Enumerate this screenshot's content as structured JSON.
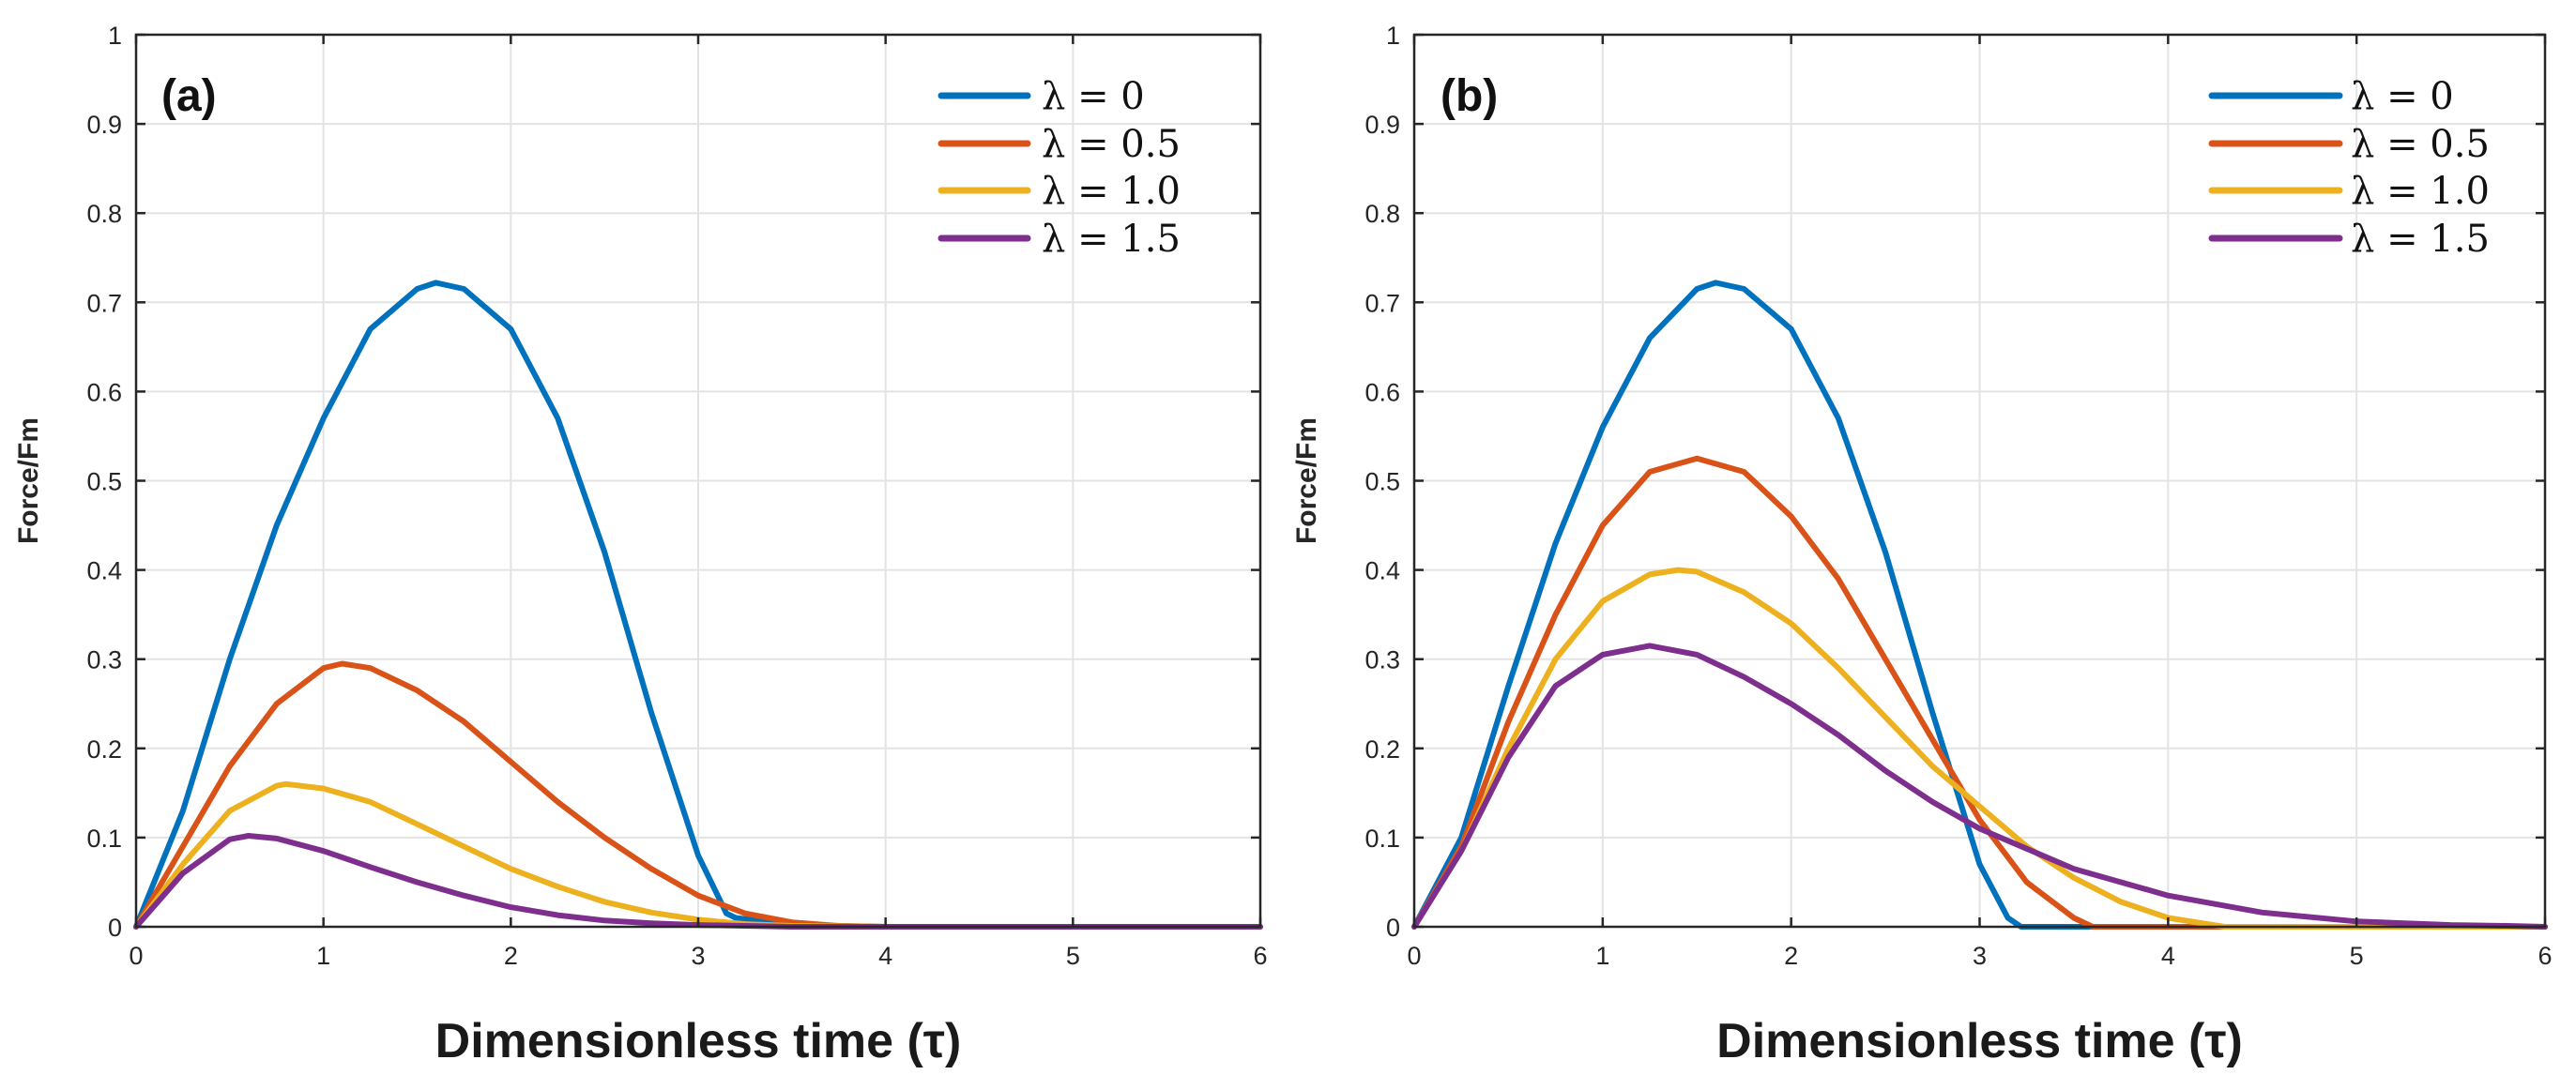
{
  "chart_data": [
    {
      "type": "line",
      "panel_label": "(a)",
      "xlabel": "Dimensionless time (τ)",
      "ylabel": "Force/Fm",
      "xlim": [
        0,
        6
      ],
      "ylim": [
        0,
        1
      ],
      "xticks": [
        "0",
        "1",
        "2",
        "3",
        "4",
        "5",
        "6"
      ],
      "yticks": [
        "0",
        "0.1",
        "0.2",
        "0.3",
        "0.4",
        "0.5",
        "0.6",
        "0.7",
        "0.8",
        "0.9",
        "1"
      ],
      "grid": true,
      "legend_position": "top-right",
      "series": [
        {
          "name": "λ = 0",
          "color": "#0072BD",
          "x": [
            0,
            0.25,
            0.5,
            0.75,
            1.0,
            1.25,
            1.5,
            1.6,
            1.75,
            2.0,
            2.25,
            2.5,
            2.75,
            3.0,
            3.15,
            3.2,
            3.5,
            4,
            5,
            6
          ],
          "y": [
            0,
            0.13,
            0.3,
            0.45,
            0.57,
            0.67,
            0.715,
            0.722,
            0.715,
            0.67,
            0.57,
            0.42,
            0.24,
            0.08,
            0.015,
            0.01,
            0.002,
            0,
            0,
            0
          ]
        },
        {
          "name": "λ = 0.5",
          "color": "#D95319",
          "x": [
            0,
            0.25,
            0.5,
            0.75,
            1.0,
            1.1,
            1.25,
            1.5,
            1.75,
            2.0,
            2.25,
            2.5,
            2.75,
            3.0,
            3.25,
            3.5,
            3.75,
            4,
            5,
            6
          ],
          "y": [
            0,
            0.09,
            0.18,
            0.25,
            0.29,
            0.295,
            0.29,
            0.265,
            0.23,
            0.185,
            0.14,
            0.1,
            0.065,
            0.035,
            0.015,
            0.005,
            0.001,
            0,
            0,
            0
          ]
        },
        {
          "name": "λ = 1.0",
          "color": "#EDB120",
          "x": [
            0,
            0.25,
            0.5,
            0.75,
            0.8,
            1.0,
            1.25,
            1.5,
            1.75,
            2.0,
            2.25,
            2.5,
            2.75,
            3.0,
            3.25,
            3.5,
            4,
            5,
            6
          ],
          "y": [
            0,
            0.07,
            0.13,
            0.158,
            0.16,
            0.155,
            0.14,
            0.115,
            0.09,
            0.065,
            0.045,
            0.028,
            0.016,
            0.008,
            0.003,
            0.001,
            0,
            0,
            0
          ]
        },
        {
          "name": "λ = 1.5",
          "color": "#7E2F8E",
          "x": [
            0,
            0.25,
            0.5,
            0.6,
            0.75,
            1.0,
            1.25,
            1.5,
            1.75,
            2.0,
            2.25,
            2.5,
            2.75,
            3.0,
            3.25,
            3.5,
            4,
            5,
            6
          ],
          "y": [
            0,
            0.06,
            0.098,
            0.102,
            0.099,
            0.085,
            0.067,
            0.05,
            0.035,
            0.022,
            0.013,
            0.007,
            0.004,
            0.002,
            0.001,
            0,
            0,
            0,
            0
          ]
        }
      ]
    },
    {
      "type": "line",
      "panel_label": "(b)",
      "xlabel": "Dimensionless time (τ)",
      "ylabel": "Force/Fm",
      "xlim": [
        0,
        6
      ],
      "ylim": [
        0,
        1
      ],
      "xticks": [
        "0",
        "1",
        "2",
        "3",
        "4",
        "5",
        "6"
      ],
      "yticks": [
        "0",
        "0.1",
        "0.2",
        "0.3",
        "0.4",
        "0.5",
        "0.6",
        "0.7",
        "0.8",
        "0.9",
        "1"
      ],
      "grid": true,
      "legend_position": "top-right",
      "series": [
        {
          "name": "λ = 0",
          "color": "#0072BD",
          "x": [
            0,
            0.25,
            0.5,
            0.75,
            1.0,
            1.25,
            1.5,
            1.6,
            1.75,
            2.0,
            2.25,
            2.5,
            2.75,
            3.0,
            3.15,
            3.22,
            3.5,
            4,
            5,
            6
          ],
          "y": [
            0,
            0.1,
            0.27,
            0.43,
            0.56,
            0.66,
            0.715,
            0.722,
            0.715,
            0.67,
            0.57,
            0.42,
            0.24,
            0.07,
            0.01,
            0,
            0,
            0,
            0,
            0
          ]
        },
        {
          "name": "λ = 0.5",
          "color": "#D95319",
          "x": [
            0,
            0.25,
            0.5,
            0.75,
            1.0,
            1.25,
            1.5,
            1.75,
            2.0,
            2.25,
            2.5,
            2.75,
            3.0,
            3.25,
            3.5,
            3.6,
            4,
            5,
            6
          ],
          "y": [
            0,
            0.09,
            0.23,
            0.35,
            0.45,
            0.51,
            0.525,
            0.51,
            0.46,
            0.39,
            0.3,
            0.21,
            0.12,
            0.05,
            0.01,
            0,
            0,
            0,
            0
          ]
        },
        {
          "name": "λ = 1.0",
          "color": "#EDB120",
          "x": [
            0,
            0.25,
            0.5,
            0.75,
            1.0,
            1.25,
            1.4,
            1.5,
            1.75,
            2.0,
            2.25,
            2.5,
            2.75,
            3.0,
            3.25,
            3.5,
            3.75,
            4.0,
            4.3,
            5,
            6
          ],
          "y": [
            0,
            0.085,
            0.2,
            0.3,
            0.365,
            0.395,
            0.4,
            0.398,
            0.375,
            0.34,
            0.29,
            0.235,
            0.18,
            0.135,
            0.09,
            0.055,
            0.028,
            0.01,
            0,
            0,
            0
          ]
        },
        {
          "name": "λ = 1.5",
          "color": "#7E2F8E",
          "x": [
            0,
            0.25,
            0.5,
            0.75,
            1.0,
            1.25,
            1.5,
            1.75,
            2.0,
            2.25,
            2.5,
            2.75,
            3.0,
            3.5,
            4.0,
            4.5,
            5.0,
            5.5,
            5.8,
            6
          ],
          "y": [
            0,
            0.085,
            0.19,
            0.27,
            0.305,
            0.315,
            0.305,
            0.28,
            0.25,
            0.215,
            0.175,
            0.14,
            0.11,
            0.065,
            0.035,
            0.016,
            0.006,
            0.002,
            0.001,
            0
          ]
        }
      ]
    }
  ]
}
